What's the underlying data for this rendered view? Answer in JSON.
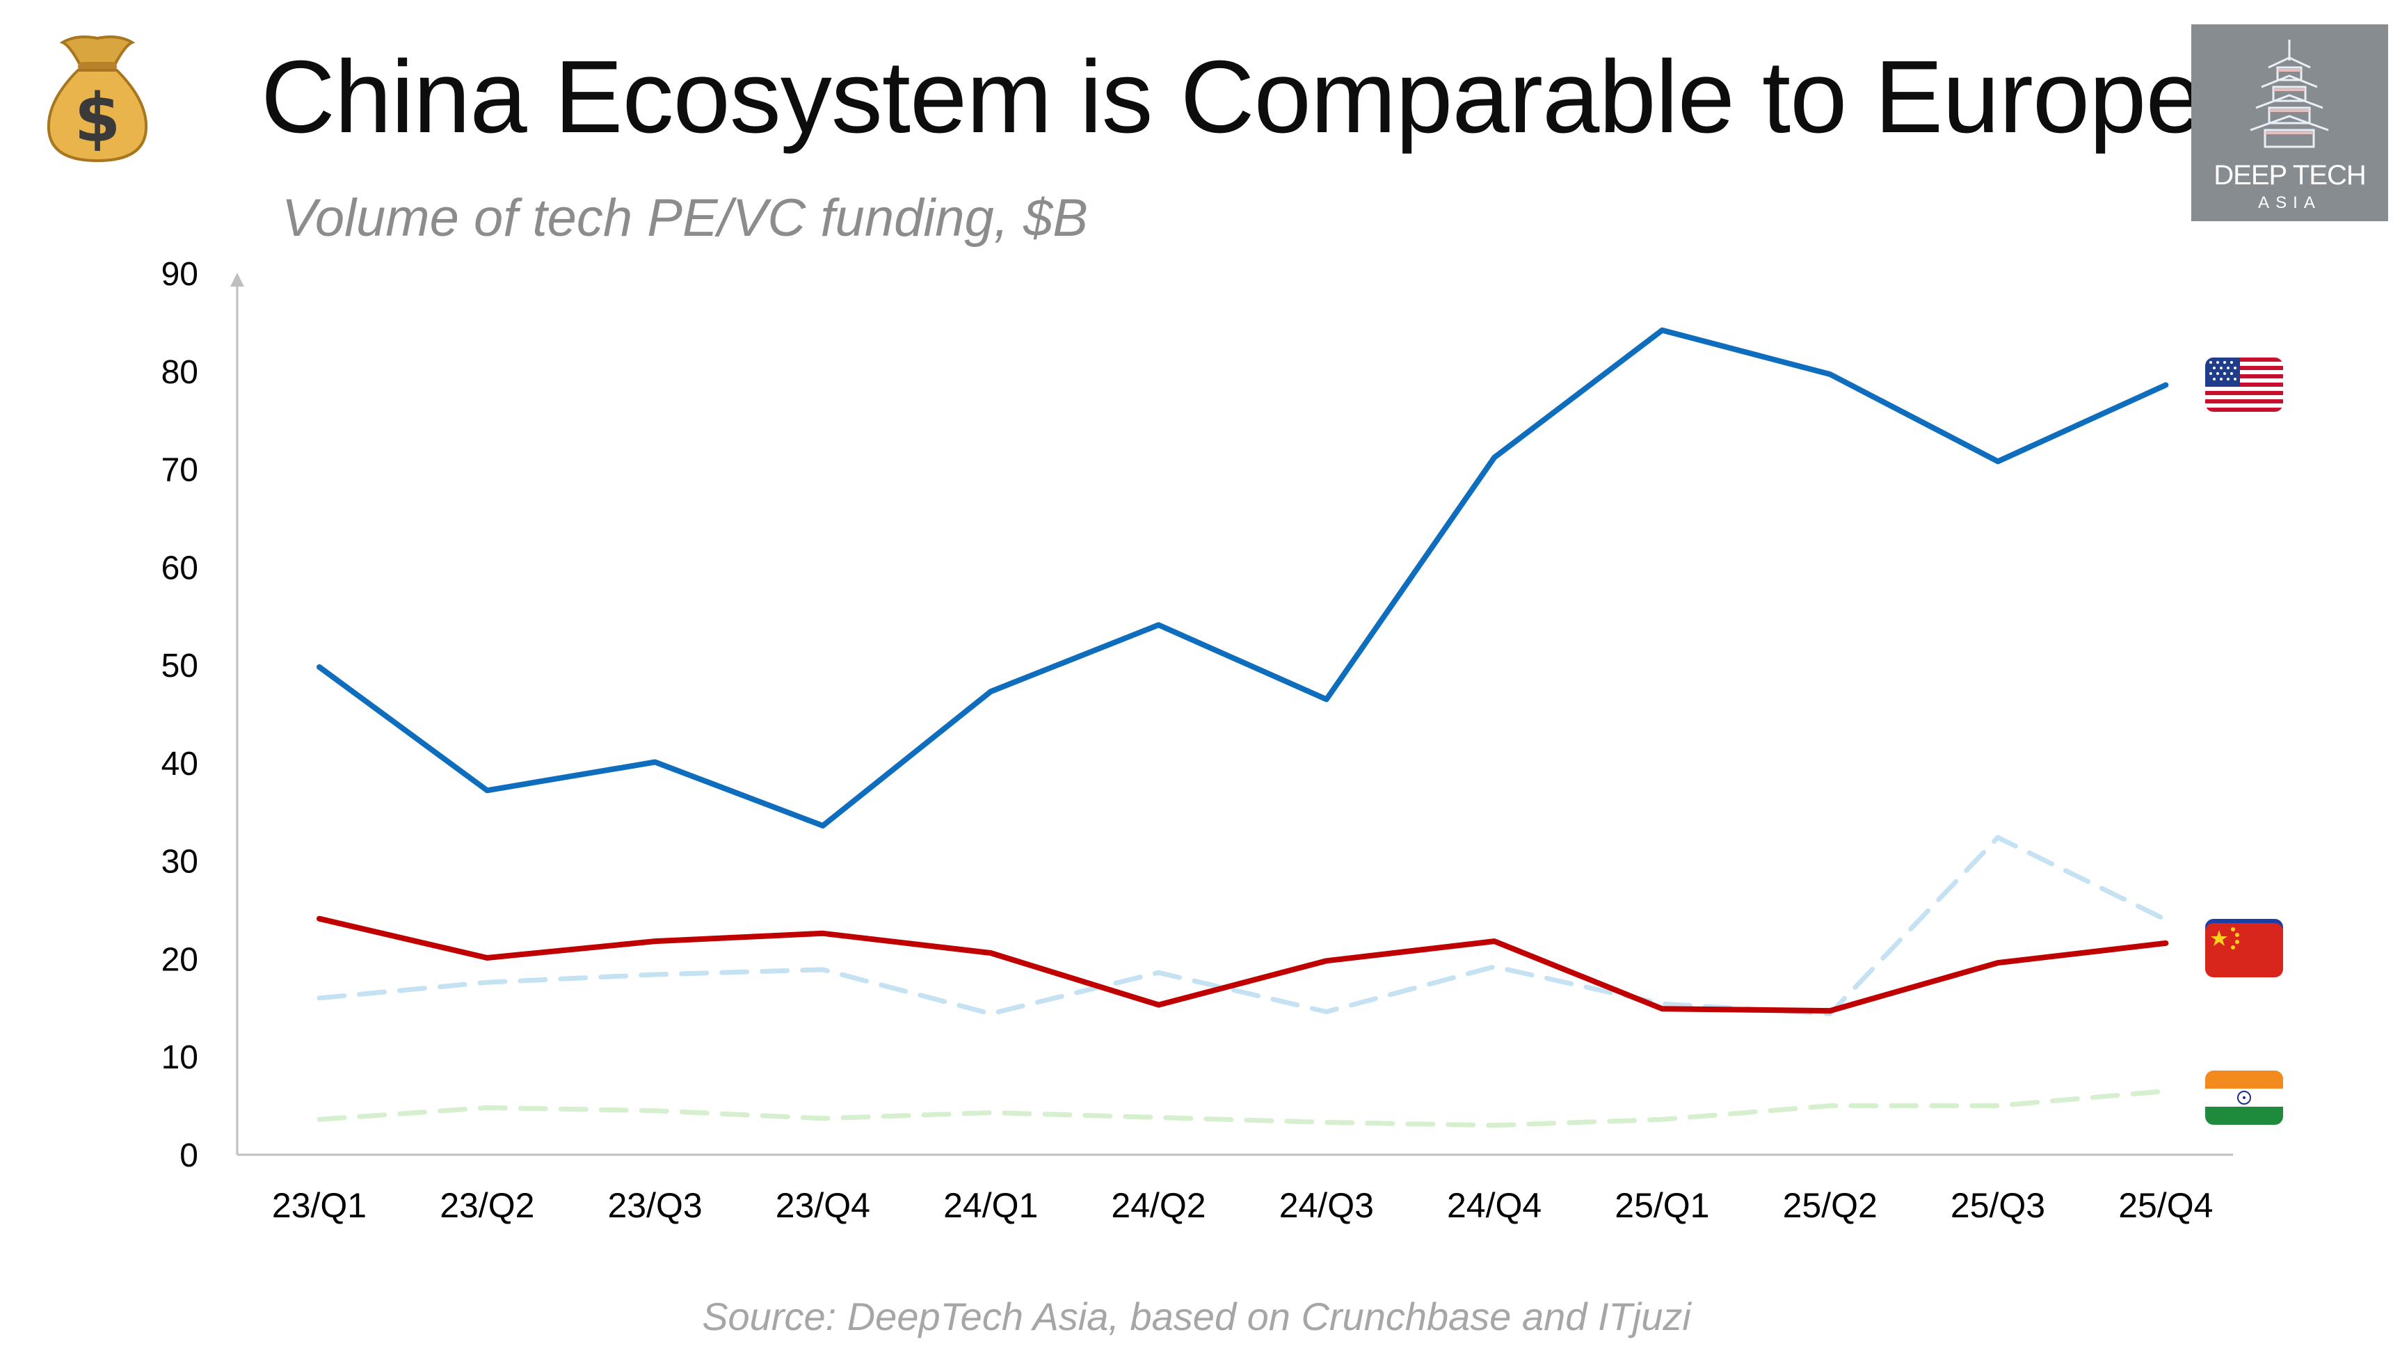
{
  "title": "China Ecosystem is Comparable to Europe",
  "subtitle": "Volume of tech PE/VC funding, $B",
  "source": "Source: DeepTech Asia, based on Crunchbase and ITjuzi",
  "logo": {
    "name": "DEEP TECH",
    "sub": "ASIA"
  },
  "icons": {
    "money_bag": "money-bag-icon",
    "logo": "pagoda-icon",
    "flags": [
      "us-flag-icon",
      "eu-flag-icon",
      "china-flag-icon",
      "india-flag-icon"
    ]
  },
  "colors": {
    "us": "#0e6dbd",
    "china": "#c00000",
    "europe": "#c5e2f3",
    "india": "#d6efce",
    "axis": "#bfbfbf",
    "title": "#0d0d0d",
    "subtitle": "#8c8c8c",
    "source": "#a6a6a6",
    "logo_bg": "#878c90"
  },
  "chart_data": {
    "type": "line",
    "title": "",
    "xlabel": "",
    "ylabel": "",
    "ylim": [
      0,
      90
    ],
    "yticks": [
      0,
      10,
      20,
      30,
      40,
      50,
      60,
      70,
      80,
      90
    ],
    "grid": false,
    "legend": "flag icons at right end of each line",
    "categories": [
      "23/Q1",
      "23/Q2",
      "23/Q3",
      "23/Q4",
      "24/Q1",
      "24/Q2",
      "24/Q3",
      "24/Q4",
      "25/Q1",
      "25/Q2",
      "25/Q3",
      "25/Q4"
    ],
    "series": [
      {
        "key": "us",
        "style": "solid",
        "values": [
          49.8,
          37.2,
          40.1,
          33.6,
          47.3,
          54.1,
          46.5,
          71.2,
          84.2,
          79.7,
          70.8,
          78.6
        ]
      },
      {
        "key": "europe",
        "style": "dashed",
        "values": [
          16.0,
          17.6,
          18.4,
          18.9,
          14.4,
          18.6,
          14.6,
          19.2,
          15.4,
          14.4,
          32.4,
          24.0
        ]
      },
      {
        "key": "china",
        "style": "solid",
        "values": [
          24.1,
          20.1,
          21.8,
          22.6,
          20.6,
          15.3,
          19.8,
          21.8,
          14.9,
          14.7,
          19.6,
          21.6
        ]
      },
      {
        "key": "india",
        "style": "dashed",
        "values": [
          3.6,
          4.8,
          4.5,
          3.7,
          4.3,
          3.8,
          3.3,
          3.0,
          3.6,
          5.0,
          5.0,
          6.5
        ]
      }
    ]
  }
}
